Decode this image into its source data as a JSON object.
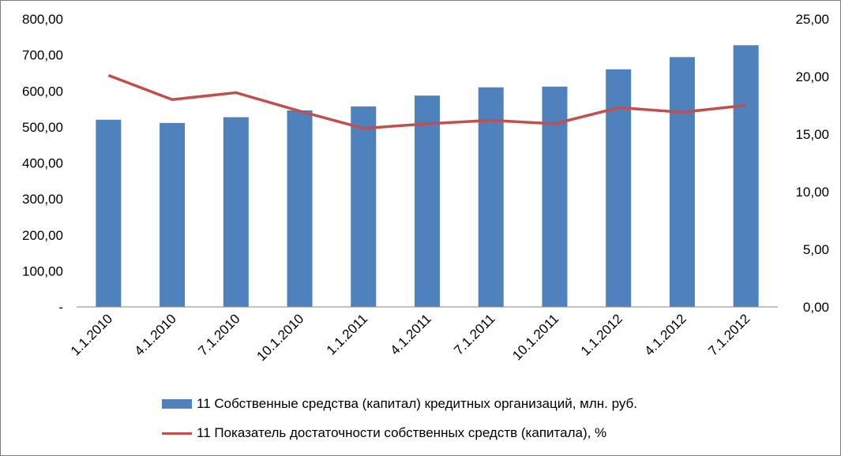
{
  "chart_data": {
    "type": "bar",
    "categories": [
      "1.1.2010",
      "4.1.2010",
      "7.1.2010",
      "10.1.2010",
      "1.1.2011",
      "4.1.2011",
      "7.1.2011",
      "10.1.2011",
      "1.1.2012",
      "4.1.2012",
      "7.1.2012"
    ],
    "series": [
      {
        "name": "11 Собственные средства (капитал) кредитных организаций, млн. руб.",
        "type": "bar",
        "axis": "left",
        "color": "#4f81bd",
        "values": [
          520,
          511,
          527,
          546,
          557,
          587,
          610,
          612,
          660,
          694,
          727
        ]
      },
      {
        "name": "11 Показатель достаточности собственных средств (капитала), %",
        "type": "line",
        "axis": "right",
        "color": "#c0504d",
        "values": [
          20.1,
          18.0,
          18.6,
          17.0,
          15.5,
          15.9,
          16.2,
          15.9,
          17.3,
          16.9,
          17.5
        ]
      }
    ],
    "y_left": {
      "ylim": [
        0,
        800
      ],
      "ticks": [
        "-",
        "100,00",
        "200,00",
        "300,00",
        "400,00",
        "500,00",
        "600,00",
        "700,00",
        "800,00"
      ]
    },
    "y_right": {
      "ylim": [
        0,
        25
      ],
      "ticks": [
        "0,00",
        "5,00",
        "10,00",
        "15,00",
        "20,00",
        "25,00"
      ]
    },
    "title": "",
    "xlabel": "",
    "ylabel": "",
    "grid": false,
    "legend_position": "bottom"
  }
}
